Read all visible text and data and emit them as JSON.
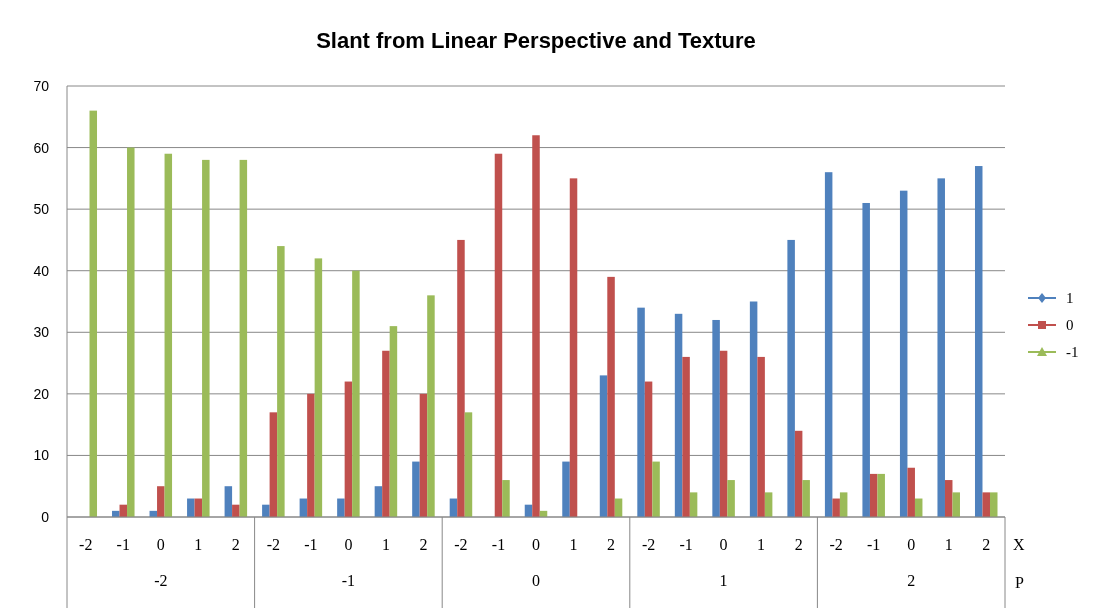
{
  "chart_data": {
    "type": "bar",
    "title": "Slant from Linear Perspective and Texture",
    "categories": [
      "-2",
      "-1",
      "0",
      "1",
      "2",
      "-2",
      "-1",
      "0",
      "1",
      "2",
      "-2",
      "-1",
      "0",
      "1",
      "2",
      "-2",
      "-1",
      "0",
      "1",
      "2",
      "-2",
      "-1",
      "0",
      "1",
      "2"
    ],
    "xlabel": "X",
    "annotations": [
      "-2",
      "-1",
      "0",
      "1",
      "2",
      "P"
    ],
    "series": [
      {
        "name": "1",
        "color": "#4f81bd",
        "values": [
          0,
          1,
          1,
          3,
          5,
          2,
          3,
          3,
          5,
          9,
          3,
          0,
          2,
          9,
          23,
          34,
          33,
          32,
          35,
          45,
          56,
          51,
          53,
          55,
          57
        ]
      },
      {
        "name": "0",
        "color": "#c0504d",
        "values": [
          0,
          2,
          5,
          3,
          2,
          17,
          20,
          22,
          27,
          20,
          45,
          59,
          62,
          55,
          39,
          22,
          26,
          27,
          26,
          14,
          3,
          7,
          8,
          6,
          4
        ]
      },
      {
        "name": "-1",
        "color": "#9bbb59",
        "values": [
          66,
          60,
          59,
          58,
          58,
          44,
          42,
          40,
          31,
          36,
          17,
          6,
          1,
          0,
          3,
          9,
          4,
          6,
          4,
          6,
          4,
          7,
          3,
          4,
          4
        ]
      }
    ],
    "ylim": [
      0,
      70
    ],
    "yticks": [
      0,
      10,
      20,
      30,
      40,
      50,
      60,
      70
    ],
    "grid": "y",
    "legend": "right"
  }
}
